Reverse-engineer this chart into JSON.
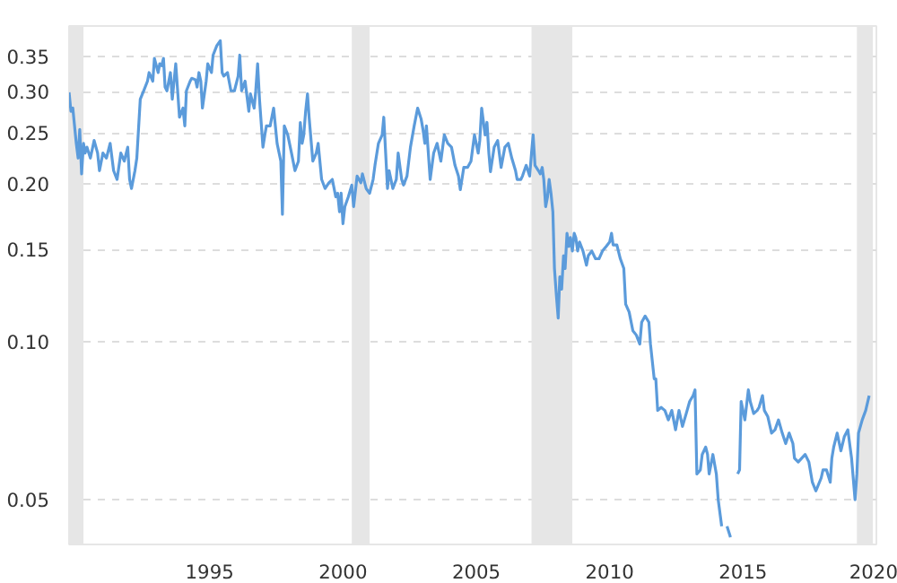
{
  "chart_data": {
    "type": "line",
    "log": "y",
    "grid": "y",
    "xlim": [
      1989.73,
      2020.0
    ],
    "ylim": [
      0.0411,
      0.4
    ],
    "xticks": [
      1995,
      2000,
      2005,
      2010,
      2015,
      2020
    ],
    "yticks": [
      {
        "value": 0.05,
        "label": "0.05"
      },
      {
        "value": 0.1,
        "label": "0.10"
      },
      {
        "value": 0.15,
        "label": "0.15"
      },
      {
        "value": 0.2,
        "label": "0.20"
      },
      {
        "value": 0.25,
        "label": "0.25"
      },
      {
        "value": 0.3,
        "label": "0.30"
      },
      {
        "value": 0.35,
        "label": "0.35"
      }
    ],
    "bands": [
      {
        "axis": "x",
        "from": 1989.73,
        "to": 1990.27,
        "color": "#e6e6e6"
      },
      {
        "axis": "x",
        "from": 2000.33,
        "to": 2001.0,
        "color": "#e6e6e6"
      },
      {
        "axis": "x",
        "from": 2007.07,
        "to": 2008.6,
        "color": "#e6e6e6"
      },
      {
        "axis": "x",
        "from": 2019.27,
        "to": 2019.87,
        "color": "#e6e6e6"
      }
    ],
    "x": [
      1989.73,
      1989.8,
      1989.87,
      1990.0,
      1990.07,
      1990.13,
      1990.2,
      1990.27,
      1990.33,
      1990.4,
      1990.53,
      1990.67,
      1990.8,
      1990.87,
      1991.0,
      1991.13,
      1991.27,
      1991.4,
      1991.53,
      1991.67,
      1991.8,
      1991.93,
      1992.0,
      1992.07,
      1992.2,
      1992.27,
      1992.4,
      1992.53,
      1992.67,
      1992.73,
      1992.87,
      1992.93,
      1993.07,
      1993.13,
      1993.2,
      1993.27,
      1993.33,
      1993.4,
      1993.53,
      1993.6,
      1993.73,
      1993.87,
      1994.0,
      1994.07,
      1994.13,
      1994.27,
      1994.33,
      1994.47,
      1994.53,
      1994.6,
      1994.67,
      1994.73,
      1994.87,
      1994.93,
      1995.07,
      1995.13,
      1995.27,
      1995.4,
      1995.47,
      1995.53,
      1995.67,
      1995.8,
      1995.93,
      1996.07,
      1996.13,
      1996.2,
      1996.33,
      1996.47,
      1996.53,
      1996.67,
      1996.73,
      1996.8,
      1996.87,
      1997.0,
      1997.07,
      1997.13,
      1997.27,
      1997.4,
      1997.53,
      1997.67,
      1997.73,
      1997.8,
      1997.93,
      1998.07,
      1998.2,
      1998.33,
      1998.4,
      1998.47,
      1998.53,
      1998.6,
      1998.67,
      1998.73,
      1998.87,
      1999.0,
      1999.07,
      1999.2,
      1999.33,
      1999.47,
      1999.6,
      1999.73,
      1999.8,
      1999.87,
      1999.93,
      2000.0,
      2000.07,
      2000.2,
      2000.33,
      2000.4,
      2000.53,
      2000.67,
      2000.73,
      2000.87,
      2001.0,
      2001.13,
      2001.2,
      2001.33,
      2001.47,
      2001.53,
      2001.67,
      2001.73,
      2001.87,
      2002.0,
      2002.07,
      2002.2,
      2002.27,
      2002.4,
      2002.53,
      2002.67,
      2002.8,
      2002.93,
      2003.0,
      2003.07,
      2003.13,
      2003.27,
      2003.4,
      2003.53,
      2003.67,
      2003.8,
      2003.93,
      2004.07,
      2004.2,
      2004.33,
      2004.4,
      2004.53,
      2004.67,
      2004.8,
      2004.93,
      2005.07,
      2005.13,
      2005.2,
      2005.33,
      2005.4,
      2005.47,
      2005.53,
      2005.67,
      2005.8,
      2005.93,
      2006.07,
      2006.2,
      2006.33,
      2006.47,
      2006.53,
      2006.67,
      2006.73,
      2006.87,
      2007.0,
      2007.07,
      2007.13,
      2007.2,
      2007.33,
      2007.4,
      2007.47,
      2007.53,
      2007.6,
      2007.67,
      2007.73,
      2007.8,
      2007.87,
      2007.93,
      2008.0,
      2008.07,
      2008.13,
      2008.2,
      2008.27,
      2008.33,
      2008.4,
      2008.47,
      2008.53,
      2008.6,
      2008.67,
      2008.73,
      2008.8,
      2008.87,
      2009.0,
      2009.13,
      2009.2,
      2009.33,
      2009.47,
      2009.6,
      2009.73,
      2009.87,
      2010.0,
      2010.07,
      2010.13,
      2010.27,
      2010.4,
      2010.53,
      2010.6,
      2010.73,
      2010.87,
      2011.0,
      2011.13,
      2011.2,
      2011.33,
      2011.47,
      2011.53,
      2011.67,
      2011.73,
      2011.8,
      2011.93,
      2012.07,
      2012.2,
      2012.33,
      2012.47,
      2012.6,
      2012.73,
      2012.87,
      2013.0,
      2013.13,
      2013.2,
      2013.27,
      2013.4,
      2013.47,
      2013.6,
      2013.67,
      2013.73,
      2013.87,
      2014.0,
      2014.07,
      2014.2,
      2014.27,
      2014.4,
      2014.53,
      2014.67,
      2014.8,
      2014.87,
      2014.93,
      2015.07,
      2015.2,
      2015.27,
      2015.4,
      2015.53,
      2015.6,
      2015.73,
      2015.8,
      2015.93,
      2016.07,
      2016.2,
      2016.33,
      2016.47,
      2016.6,
      2016.73,
      2016.87,
      2016.93,
      2017.07,
      2017.2,
      2017.33,
      2017.47,
      2017.6,
      2017.73,
      2017.8,
      2017.93,
      2018.0,
      2018.13,
      2018.27,
      2018.33,
      2018.4,
      2018.53,
      2018.67,
      2018.8,
      2018.93,
      2019.07,
      2019.2,
      2019.27,
      2019.33,
      2019.47,
      2019.6,
      2019.73
    ],
    "series": [
      {
        "color": "#5b9bdb",
        "values": [
          0.299,
          0.275,
          0.279,
          0.239,
          0.224,
          0.254,
          0.209,
          0.239,
          0.229,
          0.235,
          0.224,
          0.242,
          0.229,
          0.212,
          0.229,
          0.224,
          0.239,
          0.212,
          0.204,
          0.229,
          0.221,
          0.235,
          0.204,
          0.196,
          0.212,
          0.224,
          0.29,
          0.301,
          0.314,
          0.326,
          0.314,
          0.347,
          0.326,
          0.339,
          0.336,
          0.347,
          0.306,
          0.301,
          0.326,
          0.29,
          0.339,
          0.268,
          0.279,
          0.258,
          0.301,
          0.314,
          0.318,
          0.316,
          0.306,
          0.326,
          0.314,
          0.279,
          0.314,
          0.339,
          0.326,
          0.352,
          0.367,
          0.375,
          0.326,
          0.321,
          0.326,
          0.301,
          0.301,
          0.321,
          0.352,
          0.301,
          0.314,
          0.275,
          0.297,
          0.279,
          0.301,
          0.339,
          0.29,
          0.235,
          0.248,
          0.258,
          0.258,
          0.279,
          0.239,
          0.221,
          0.175,
          0.258,
          0.248,
          0.229,
          0.212,
          0.221,
          0.262,
          0.239,
          0.248,
          0.275,
          0.297,
          0.268,
          0.221,
          0.229,
          0.239,
          0.204,
          0.196,
          0.201,
          0.204,
          0.189,
          0.192,
          0.177,
          0.192,
          0.168,
          0.181,
          0.189,
          0.199,
          0.181,
          0.207,
          0.201,
          0.209,
          0.196,
          0.192,
          0.204,
          0.217,
          0.239,
          0.248,
          0.268,
          0.196,
          0.212,
          0.196,
          0.204,
          0.229,
          0.204,
          0.199,
          0.207,
          0.235,
          0.258,
          0.279,
          0.266,
          0.254,
          0.239,
          0.258,
          0.204,
          0.229,
          0.239,
          0.221,
          0.248,
          0.239,
          0.235,
          0.217,
          0.207,
          0.195,
          0.215,
          0.215,
          0.221,
          0.248,
          0.229,
          0.242,
          0.279,
          0.248,
          0.262,
          0.229,
          0.211,
          0.235,
          0.242,
          0.215,
          0.235,
          0.239,
          0.224,
          0.212,
          0.204,
          0.204,
          0.207,
          0.217,
          0.207,
          0.229,
          0.248,
          0.217,
          0.212,
          0.209,
          0.215,
          0.204,
          0.181,
          0.189,
          0.204,
          0.192,
          0.177,
          0.138,
          0.123,
          0.111,
          0.133,
          0.126,
          0.146,
          0.138,
          0.161,
          0.152,
          0.158,
          0.149,
          0.161,
          0.158,
          0.149,
          0.155,
          0.149,
          0.14,
          0.146,
          0.149,
          0.144,
          0.144,
          0.149,
          0.152,
          0.155,
          0.161,
          0.153,
          0.153,
          0.144,
          0.138,
          0.118,
          0.114,
          0.105,
          0.103,
          0.099,
          0.109,
          0.112,
          0.109,
          0.099,
          0.085,
          0.085,
          0.074,
          0.075,
          0.074,
          0.071,
          0.074,
          0.068,
          0.074,
          0.069,
          0.073,
          0.077,
          0.079,
          0.081,
          0.056,
          0.057,
          0.061,
          0.063,
          0.061,
          0.056,
          0.061,
          0.056,
          0.05,
          0.0445,
          null,
          0.0445,
          0.0424,
          null,
          0.056,
          0.057,
          0.077,
          0.071,
          0.081,
          0.077,
          0.073,
          0.074,
          0.075,
          0.079,
          0.074,
          0.072,
          0.067,
          0.068,
          0.071,
          0.067,
          0.064,
          0.067,
          0.064,
          0.06,
          0.059,
          0.06,
          0.061,
          0.059,
          0.054,
          0.052,
          0.053,
          0.055,
          0.057,
          0.057,
          0.054,
          0.06,
          0.063,
          0.067,
          0.062,
          0.066,
          0.068,
          0.06,
          0.05,
          0.056,
          0.067,
          0.071,
          0.074,
          0.079
        ]
      }
    ]
  }
}
